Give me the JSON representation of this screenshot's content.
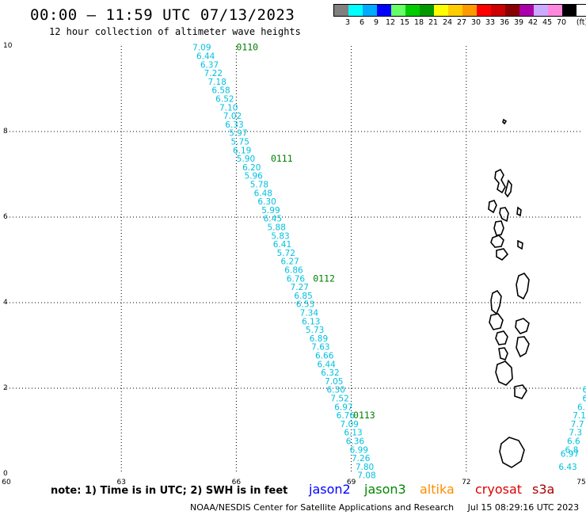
{
  "header": {
    "title": "00:00 – 11:59 UTC 07/13/2023",
    "subtitle": "12 hour collection of altimeter wave heights"
  },
  "legend": {
    "colors": [
      "#808080",
      "#00ffff",
      "#00aaff",
      "#0000ff",
      "#66ff66",
      "#00cc00",
      "#009900",
      "#ffff00",
      "#ffcc00",
      "#ff9900",
      "#ff0000",
      "#cc0000",
      "#880000",
      "#aa00aa",
      "#ccaaff",
      "#ff88dd",
      "#000000"
    ],
    "labels": [
      "3",
      "6",
      "9",
      "12",
      "15",
      "18",
      "21",
      "24",
      "27",
      "30",
      "33",
      "36",
      "39",
      "42",
      "45",
      "70"
    ],
    "unit": "(ft)"
  },
  "map": {
    "x_ticks": [
      "60",
      "63",
      "66",
      "69",
      "72",
      "75"
    ],
    "y_ticks": [
      "0",
      "2",
      "4",
      "6",
      "8",
      "10"
    ],
    "lon_range": [
      60,
      75
    ],
    "lat_range": [
      0,
      10
    ],
    "track_color": "#00c0e0",
    "marker_color": "#008000",
    "track": [
      {
        "lon": 65.1,
        "lat": 9.95,
        "value": "7.09"
      },
      {
        "lon": 65.2,
        "lat": 9.75,
        "value": "6.44"
      },
      {
        "lon": 65.3,
        "lat": 9.55,
        "value": "6.37"
      },
      {
        "lon": 65.4,
        "lat": 9.35,
        "value": "7.22"
      },
      {
        "lon": 65.5,
        "lat": 9.15,
        "value": "7.18"
      },
      {
        "lon": 65.6,
        "lat": 8.95,
        "value": "6.58"
      },
      {
        "lon": 65.7,
        "lat": 8.75,
        "value": "6.52"
      },
      {
        "lon": 65.8,
        "lat": 8.55,
        "value": "7.10"
      },
      {
        "lon": 65.9,
        "lat": 8.35,
        "value": "7.02"
      },
      {
        "lon": 65.95,
        "lat": 8.15,
        "value": "6.33"
      },
      {
        "lon": 66.05,
        "lat": 7.95,
        "value": "5.97"
      },
      {
        "lon": 66.1,
        "lat": 7.75,
        "value": "5.75"
      },
      {
        "lon": 66.15,
        "lat": 7.55,
        "value": "6.19"
      },
      {
        "lon": 66.25,
        "lat": 7.35,
        "value": "5.90"
      },
      {
        "lon": 66.4,
        "lat": 7.15,
        "value": "6.20"
      },
      {
        "lon": 66.45,
        "lat": 6.95,
        "value": "5.96"
      },
      {
        "lon": 66.6,
        "lat": 6.75,
        "value": "5.78"
      },
      {
        "lon": 66.7,
        "lat": 6.55,
        "value": "6.48"
      },
      {
        "lon": 66.8,
        "lat": 6.35,
        "value": "6.30"
      },
      {
        "lon": 66.9,
        "lat": 6.15,
        "value": "5.99"
      },
      {
        "lon": 66.95,
        "lat": 5.95,
        "value": "6.45"
      },
      {
        "lon": 67.05,
        "lat": 5.75,
        "value": "5.88"
      },
      {
        "lon": 67.15,
        "lat": 5.55,
        "value": "5.83"
      },
      {
        "lon": 67.2,
        "lat": 5.35,
        "value": "6.41"
      },
      {
        "lon": 67.3,
        "lat": 5.15,
        "value": "5.72"
      },
      {
        "lon": 67.4,
        "lat": 4.95,
        "value": "6.27"
      },
      {
        "lon": 67.5,
        "lat": 4.75,
        "value": "6.86"
      },
      {
        "lon": 67.55,
        "lat": 4.55,
        "value": "6.76"
      },
      {
        "lon": 67.65,
        "lat": 4.35,
        "value": "7.27"
      },
      {
        "lon": 67.75,
        "lat": 4.15,
        "value": "6.85"
      },
      {
        "lon": 67.8,
        "lat": 3.95,
        "value": "6.53"
      },
      {
        "lon": 67.9,
        "lat": 3.75,
        "value": "7.34"
      },
      {
        "lon": 67.95,
        "lat": 3.55,
        "value": "6.13"
      },
      {
        "lon": 68.05,
        "lat": 3.35,
        "value": "5.73"
      },
      {
        "lon": 68.15,
        "lat": 3.15,
        "value": "6.89"
      },
      {
        "lon": 68.2,
        "lat": 2.95,
        "value": "7.63"
      },
      {
        "lon": 68.3,
        "lat": 2.75,
        "value": "6.66"
      },
      {
        "lon": 68.35,
        "lat": 2.55,
        "value": "6.44"
      },
      {
        "lon": 68.45,
        "lat": 2.35,
        "value": "6.32"
      },
      {
        "lon": 68.55,
        "lat": 2.15,
        "value": "7.05"
      },
      {
        "lon": 68.6,
        "lat": 1.95,
        "value": "6.30"
      },
      {
        "lon": 68.7,
        "lat": 1.75,
        "value": "7.52"
      },
      {
        "lon": 68.8,
        "lat": 1.55,
        "value": "6.97"
      },
      {
        "lon": 68.85,
        "lat": 1.35,
        "value": "6.76"
      },
      {
        "lon": 68.95,
        "lat": 1.15,
        "value": "7.09"
      },
      {
        "lon": 69.05,
        "lat": 0.95,
        "value": "6.13"
      },
      {
        "lon": 69.1,
        "lat": 0.75,
        "value": "6.36"
      },
      {
        "lon": 69.2,
        "lat": 0.55,
        "value": "6.99"
      },
      {
        "lon": 69.25,
        "lat": 0.35,
        "value": "7.26"
      },
      {
        "lon": 69.35,
        "lat": 0.15,
        "value": "7.80"
      },
      {
        "lon": 69.4,
        "lat": -0.05,
        "value": "7.08"
      }
    ],
    "track2": [
      {
        "lon": 75.1,
        "lat": 1.95,
        "value": "6"
      },
      {
        "lon": 75.1,
        "lat": 1.75,
        "value": "6"
      },
      {
        "lon": 75.0,
        "lat": 1.55,
        "value": "6."
      },
      {
        "lon": 74.95,
        "lat": 1.35,
        "value": "7.1"
      },
      {
        "lon": 74.9,
        "lat": 1.15,
        "value": "7.7"
      },
      {
        "lon": 74.85,
        "lat": 0.95,
        "value": "7.3"
      },
      {
        "lon": 74.8,
        "lat": 0.75,
        "value": "6.6"
      },
      {
        "lon": 74.75,
        "lat": 0.55,
        "value": "6.8"
      },
      {
        "lon": 74.7,
        "lat": 0.45,
        "value": "6.97"
      },
      {
        "lon": 74.65,
        "lat": 0.15,
        "value": "6.43"
      }
    ],
    "time_markers": [
      {
        "lon": 66.0,
        "lat": 9.95,
        "label": "0110"
      },
      {
        "lon": 66.9,
        "lat": 7.35,
        "label": "0111"
      },
      {
        "lon": 68.0,
        "lat": 4.55,
        "label": "0112"
      },
      {
        "lon": 69.05,
        "lat": 1.35,
        "label": "0113"
      }
    ]
  },
  "note": "note: 1) Time is in UTC; 2) SWH is in feet",
  "satellites": [
    {
      "name": "jason2",
      "color": "#0000ff"
    },
    {
      "name": "jason3",
      "color": "#008800"
    },
    {
      "name": "altika",
      "color": "#ff8c00"
    },
    {
      "name": "cryosat",
      "color": "#dd0000"
    },
    {
      "name": "s3a",
      "color": "#aa0000"
    }
  ],
  "footer": {
    "source": "NOAA/NESDIS Center for Satellite Applications and Research",
    "timestamp": "Jul 15 08:29:16 UTC 2023"
  }
}
